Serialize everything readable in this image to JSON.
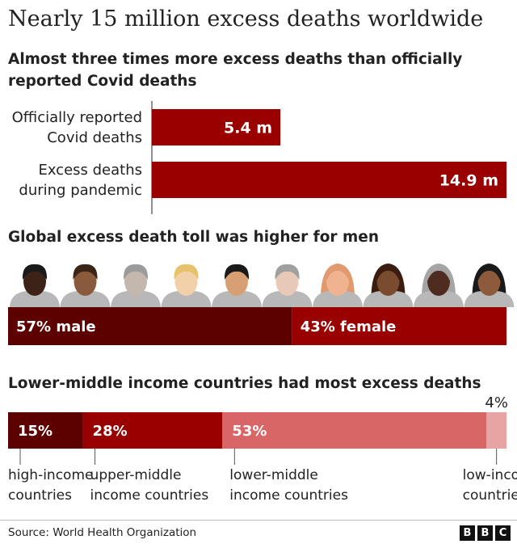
{
  "title": "Nearly 15 million excess deaths worldwide",
  "colors": {
    "dark_red": "#990000",
    "darkest_red": "#5c0000",
    "mid_red": "#cc2222",
    "light_red": "#d96666",
    "pale_red": "#e8a3a3",
    "text": "#222222"
  },
  "chart_data": [
    {
      "type": "bar",
      "title": "Almost three times more excess deaths than officially reported Covid deaths",
      "orientation": "horizontal",
      "categories": [
        "Officially reported Covid deaths",
        "Excess deaths during pandemic"
      ],
      "category_lines": [
        [
          "Officially reported",
          "Covid deaths"
        ],
        [
          "Excess deaths",
          "during pandemic"
        ]
      ],
      "values": [
        5.4,
        14.9
      ],
      "value_labels": [
        "5.4 m",
        "14.9 m"
      ],
      "unit": "m",
      "xlim": [
        0,
        14.9
      ]
    },
    {
      "type": "bar",
      "stacked": true,
      "title": "Global excess death toll was higher for men",
      "categories": [
        "male",
        "female"
      ],
      "values": [
        57,
        43
      ],
      "value_labels": [
        "57% male",
        "43% female"
      ],
      "icons": [
        "male-face-icon",
        "male-face-icon",
        "male-face-icon",
        "male-face-icon",
        "male-face-icon",
        "male-face-icon",
        "female-face-icon",
        "female-face-icon",
        "female-face-icon",
        "female-face-icon"
      ]
    },
    {
      "type": "bar",
      "stacked": true,
      "title": "Lower-middle income countries had most excess deaths",
      "categories": [
        "high-income countries",
        "upper-middle income countries",
        "lower-middle income countries",
        "low-income countries"
      ],
      "category_lines": [
        [
          "high-income",
          "countries"
        ],
        [
          "upper-middle",
          "income countries"
        ],
        [
          "lower-middle",
          "income countries"
        ],
        [
          "low-income",
          "countries"
        ]
      ],
      "values": [
        15,
        28,
        53,
        4
      ],
      "value_labels": [
        "15%",
        "28%",
        "53%",
        "4%"
      ]
    }
  ],
  "footer": {
    "source": "Source: World Health Organization",
    "logo_letters": [
      "B",
      "B",
      "C"
    ]
  }
}
